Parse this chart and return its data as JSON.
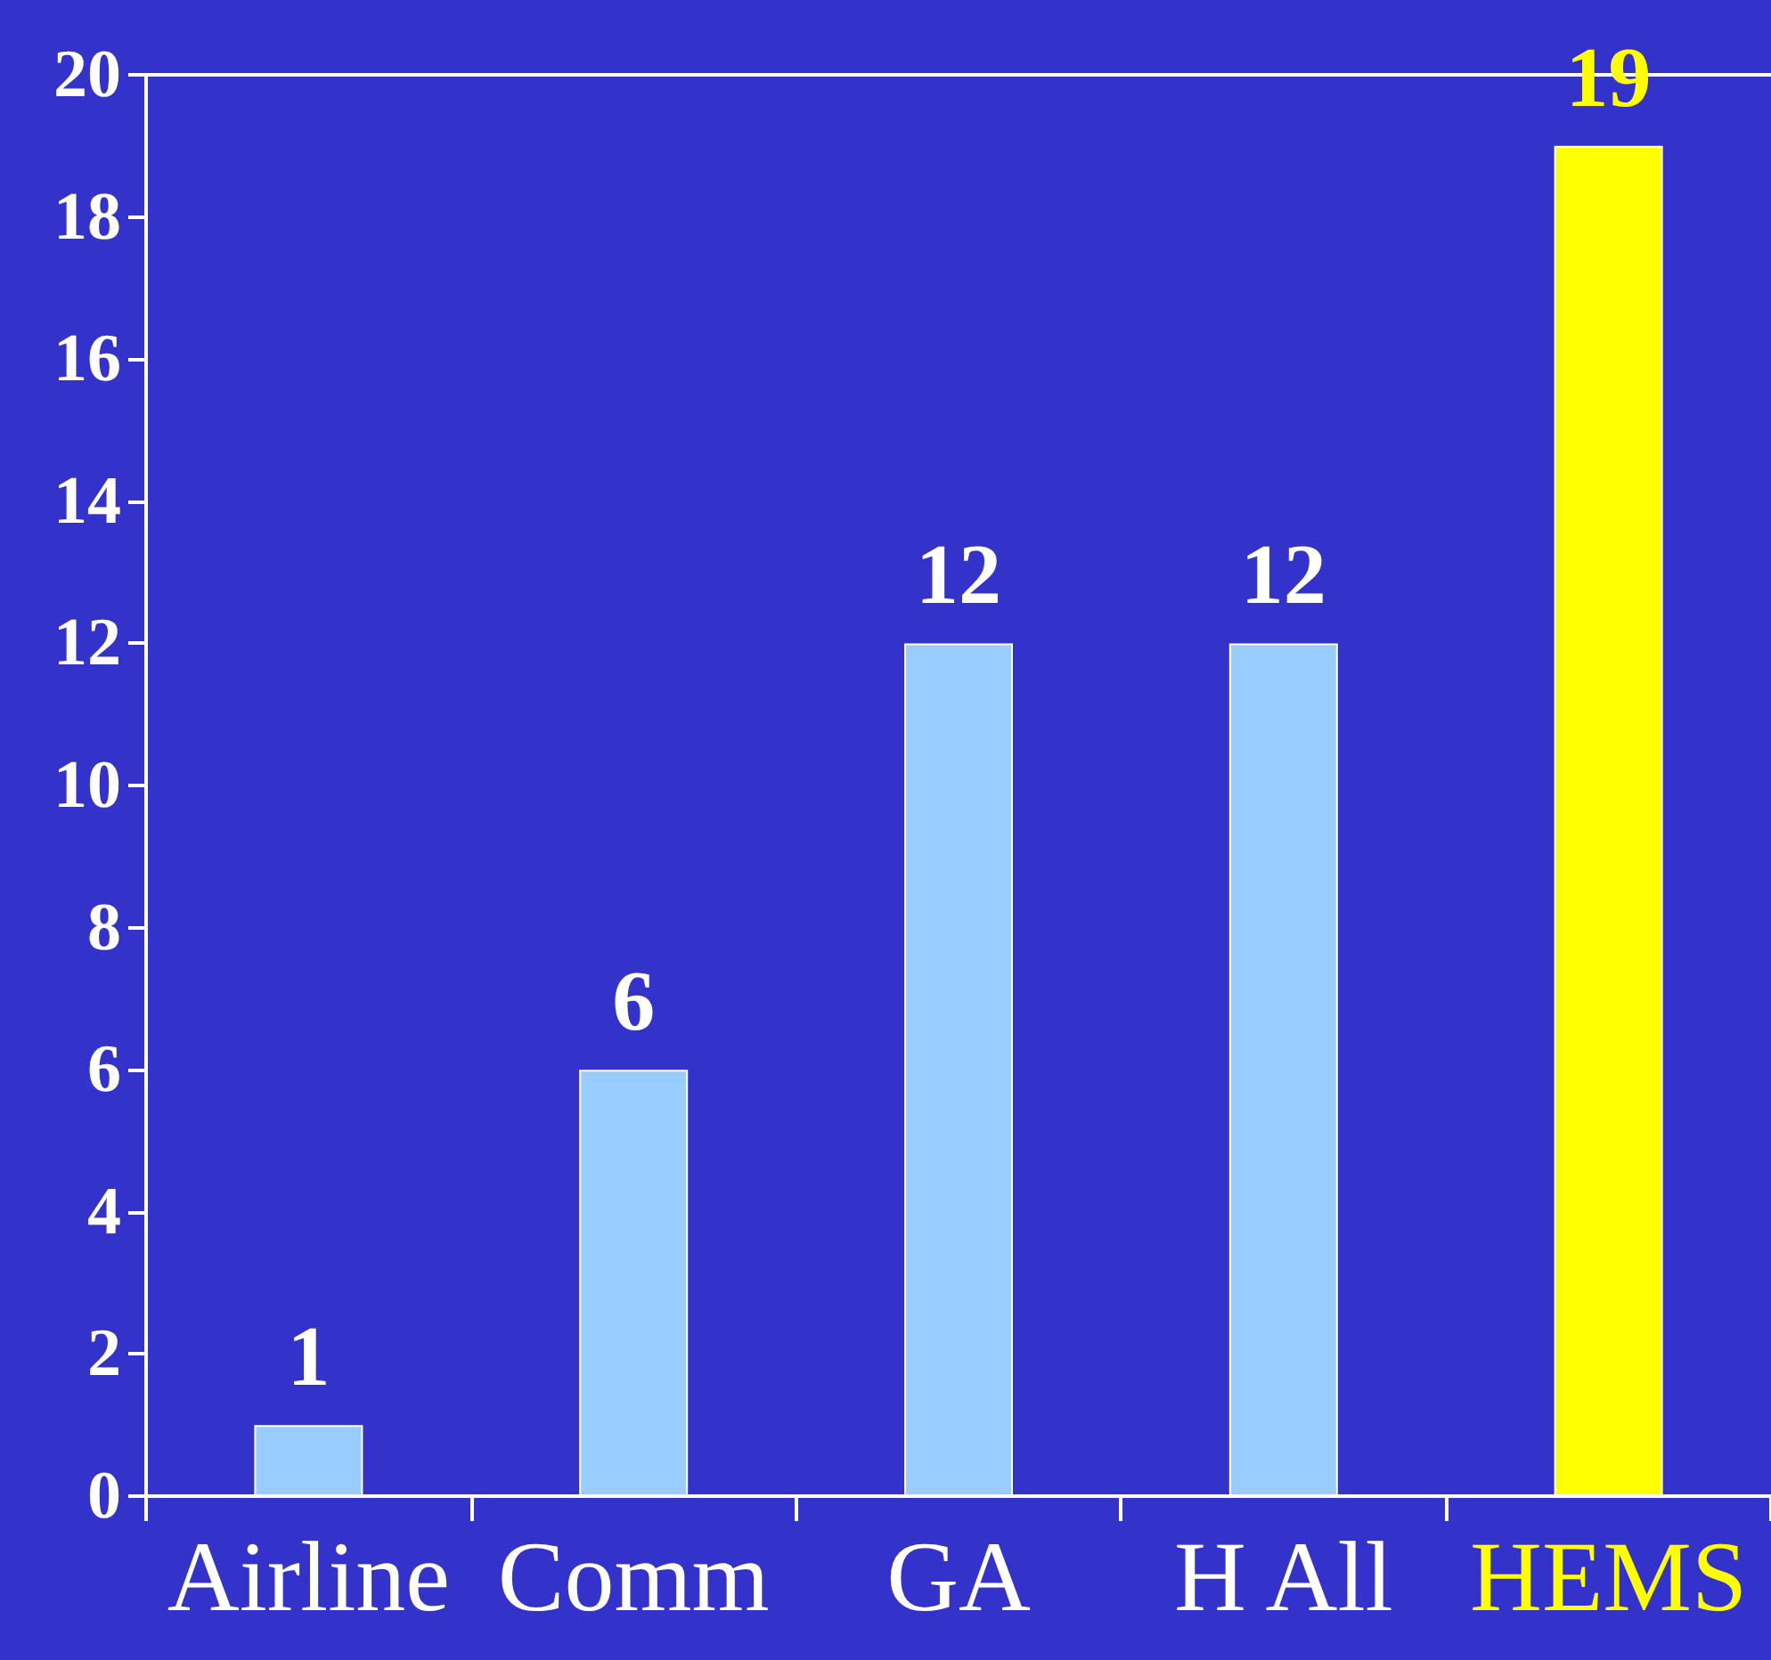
{
  "chart_data": {
    "type": "bar",
    "categories": [
      "Airline",
      "Comm",
      "GA",
      "H All",
      "HEMS"
    ],
    "values": [
      1,
      6,
      12,
      12,
      19
    ],
    "colors": [
      "#99ccff",
      "#99ccff",
      "#99ccff",
      "#99ccff",
      "#ffff00"
    ],
    "ylim": [
      0,
      20
    ],
    "yticks": [
      0,
      2,
      4,
      6,
      8,
      10,
      12,
      14,
      16,
      18,
      20
    ],
    "grid": false,
    "data_labels": true
  }
}
